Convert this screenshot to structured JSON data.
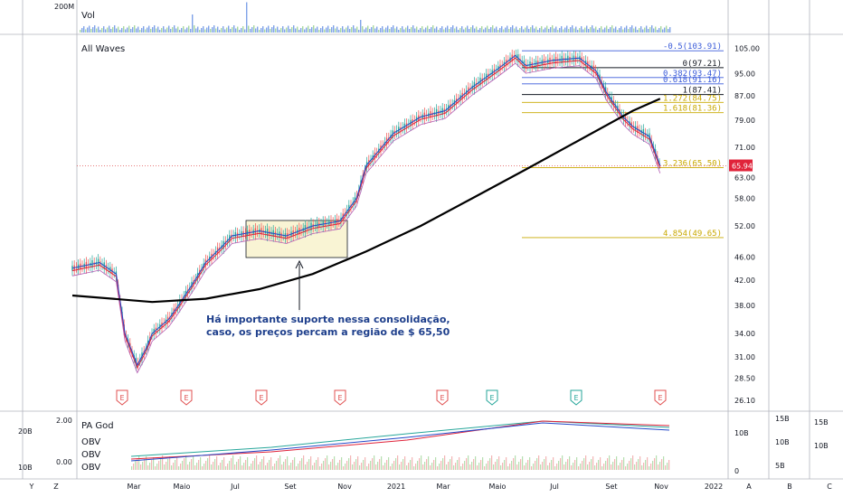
{
  "panels": {
    "volume_title": "Vol",
    "volume_axis_label": "200M",
    "main_title": "All Waves",
    "oscillator_title": "PA God",
    "obv_labels": [
      "OBV",
      "OBV",
      "OBV"
    ],
    "osc_left_labels": [
      "2.00",
      "0.00"
    ],
    "osc_left_vol_labels": [
      "20B",
      "10B"
    ],
    "osc_right_labels": [
      "10B",
      "0"
    ],
    "osc_right2_labels": [
      "15B",
      "10B",
      "5B"
    ],
    "osc_right3_labels": [
      "15B",
      "10B"
    ]
  },
  "chart_data": {
    "type": "candlestick",
    "x_axis_ticks": [
      "Mar",
      "Maio",
      "Jul",
      "Set",
      "Nov",
      "2021",
      "Mar",
      "Maio",
      "Jul",
      "Set",
      "Nov",
      "2022"
    ],
    "y_axis_ticks": [
      "105.00",
      "95.00",
      "87.00",
      "79.00",
      "71.00",
      "63.00",
      "58.00",
      "52.00",
      "46.00",
      "42.00",
      "38.00",
      "34.00",
      "31.00",
      "28.50",
      "26.10"
    ],
    "y_scale": "log",
    "y_range": [
      26.1,
      107
    ],
    "last_price": "65.94",
    "price_series": [
      {
        "d": "2020-01",
        "v": 44
      },
      {
        "d": "2020-02",
        "v": 45
      },
      {
        "d": "2020-02-20",
        "v": 43
      },
      {
        "d": "2020-03",
        "v": 34
      },
      {
        "d": "2020-03-15",
        "v": 30
      },
      {
        "d": "2020-03-25",
        "v": 32
      },
      {
        "d": "2020-04",
        "v": 34
      },
      {
        "d": "2020-04-20",
        "v": 36
      },
      {
        "d": "2020-05",
        "v": 38
      },
      {
        "d": "2020-05-20",
        "v": 42
      },
      {
        "d": "2020-06",
        "v": 45
      },
      {
        "d": "2020-06-20",
        "v": 48
      },
      {
        "d": "2020-07",
        "v": 50
      },
      {
        "d": "2020-08",
        "v": 51
      },
      {
        "d": "2020-09",
        "v": 50
      },
      {
        "d": "2020-10",
        "v": 52
      },
      {
        "d": "2020-11",
        "v": 53
      },
      {
        "d": "2020-11-20",
        "v": 58
      },
      {
        "d": "2020-12",
        "v": 66
      },
      {
        "d": "2021-01",
        "v": 75
      },
      {
        "d": "2021-02",
        "v": 80
      },
      {
        "d": "2021-03",
        "v": 82
      },
      {
        "d": "2021-04",
        "v": 90
      },
      {
        "d": "2021-05",
        "v": 97
      },
      {
        "d": "2021-05-20",
        "v": 102
      },
      {
        "d": "2021-06",
        "v": 98
      },
      {
        "d": "2021-07",
        "v": 100
      },
      {
        "d": "2021-08",
        "v": 101
      },
      {
        "d": "2021-08-20",
        "v": 96
      },
      {
        "d": "2021-09",
        "v": 88
      },
      {
        "d": "2021-09-20",
        "v": 80
      },
      {
        "d": "2021-10",
        "v": 77
      },
      {
        "d": "2021-10-20",
        "v": 74
      },
      {
        "d": "2021-11",
        "v": 66
      }
    ],
    "moving_average_200": [
      {
        "d": "2020-01",
        "v": 39.5
      },
      {
        "d": "2020-04",
        "v": 38.5
      },
      {
        "d": "2020-06",
        "v": 39
      },
      {
        "d": "2020-08",
        "v": 40.5
      },
      {
        "d": "2020-10",
        "v": 43
      },
      {
        "d": "2020-12",
        "v": 47
      },
      {
        "d": "2021-02",
        "v": 52
      },
      {
        "d": "2021-04",
        "v": 58
      },
      {
        "d": "2021-06",
        "v": 65
      },
      {
        "d": "2021-08",
        "v": 73
      },
      {
        "d": "2021-10",
        "v": 82
      },
      {
        "d": "2021-11",
        "v": 86
      }
    ],
    "fibonacci_levels": [
      {
        "label": "-0.5(103.91)",
        "value": 103.91,
        "color": "#3a5bd9"
      },
      {
        "label": "0(97.21)",
        "value": 97.21,
        "color": "#131722"
      },
      {
        "label": "0.382(93.47)",
        "value": 93.47,
        "color": "#3a5bd9"
      },
      {
        "label": "0.618(91.16)",
        "value": 91.16,
        "color": "#3a5bd9"
      },
      {
        "label": "1(87.41)",
        "value": 87.41,
        "color": "#131722"
      },
      {
        "label": "1.272(84.75)",
        "value": 84.75,
        "color": "#c9a800"
      },
      {
        "label": "1.618(81.36)",
        "value": 81.36,
        "color": "#c9a800"
      },
      {
        "label": "3.236(65.50)",
        "value": 65.5,
        "color": "#c9a800"
      },
      {
        "label": "4.854(49.65)",
        "value": 49.65,
        "color": "#c9a800"
      }
    ],
    "annotation": {
      "lines": [
        "Há importante suporte nessa consolidação,",
        "caso, os preços percam a região de $ 65,50"
      ]
    },
    "earnings_markers": [
      "E",
      "E",
      "E",
      "E",
      "E",
      "E",
      "E",
      "E"
    ],
    "bottom_axis_letters": [
      "Y",
      "Z",
      "A",
      "B",
      "C"
    ]
  }
}
